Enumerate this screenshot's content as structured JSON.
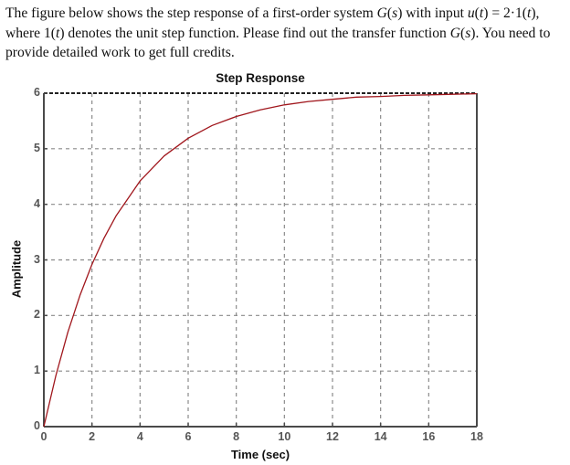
{
  "problem": {
    "line1_prefix": "The figure below shows the step response of a first-order system ",
    "line1_G": "G",
    "line1_s": "s",
    "line1_mid": " with input ",
    "line1_u": "u",
    "line1_t": "t",
    "line1_eq": " = 2·1(",
    "line1_t2": "t",
    "line1_end": "),",
    "line2_prefix": "where 1(",
    "line2_t": "t",
    "line2_mid": ") denotes the unit step function. Please find out the transfer function ",
    "line2_G": "G",
    "line2_s": "s",
    "line2_end": "). You need to",
    "line3": "provide detailed work to get full credits."
  },
  "chart_data": {
    "type": "line",
    "title": "Step Response",
    "xlabel": "Time (sec)",
    "ylabel": "Amplitude",
    "xlim": [
      0,
      18
    ],
    "ylim": [
      0,
      6
    ],
    "xticks": [
      0,
      2,
      4,
      6,
      8,
      10,
      12,
      14,
      16,
      18
    ],
    "yticks": [
      0,
      1,
      2,
      3,
      4,
      5,
      6
    ],
    "grid": true,
    "line_color": "#a0161c",
    "steady_state": 6,
    "series": [
      {
        "name": "Step response",
        "x": [
          0,
          0.5,
          1,
          1.5,
          2,
          2.5,
          3,
          4,
          5,
          6,
          7,
          8,
          9,
          10,
          11,
          12,
          13,
          14,
          15,
          16,
          17,
          18
        ],
        "y": [
          0,
          0.92,
          1.7,
          2.36,
          2.92,
          3.39,
          3.79,
          4.42,
          4.87,
          5.19,
          5.42,
          5.58,
          5.7,
          5.79,
          5.85,
          5.89,
          5.93,
          5.94,
          5.96,
          5.97,
          5.98,
          5.99
        ]
      }
    ]
  }
}
